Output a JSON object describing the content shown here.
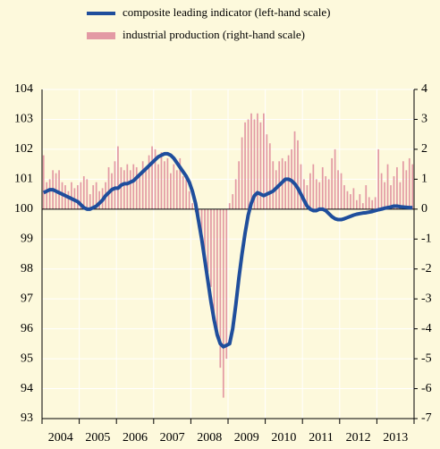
{
  "chart_data": {
    "type": "bar-line",
    "series": [
      {
        "name": "composite leading indicator (left-hand scale)",
        "type": "line",
        "color": "#1f4e9c",
        "axis": "y",
        "values": [
          100.55,
          100.6,
          100.65,
          100.65,
          100.6,
          100.55,
          100.5,
          100.45,
          100.4,
          100.35,
          100.3,
          100.25,
          100.15,
          100.05,
          100.0,
          100.0,
          100.05,
          100.1,
          100.2,
          100.3,
          100.45,
          100.55,
          100.65,
          100.7,
          100.7,
          100.8,
          100.85,
          100.85,
          100.9,
          100.95,
          101.05,
          101.15,
          101.25,
          101.35,
          101.45,
          101.55,
          101.65,
          101.75,
          101.8,
          101.85,
          101.85,
          101.8,
          101.7,
          101.55,
          101.4,
          101.25,
          101.1,
          100.9,
          100.6,
          100.2,
          99.6,
          99.0,
          98.3,
          97.6,
          96.9,
          96.3,
          95.8,
          95.5,
          95.4,
          95.45,
          95.5,
          96.0,
          96.8,
          97.7,
          98.5,
          99.2,
          99.8,
          100.2,
          100.45,
          100.55,
          100.5,
          100.45,
          100.5,
          100.55,
          100.6,
          100.7,
          100.8,
          100.9,
          101.0,
          101.0,
          100.95,
          100.85,
          100.7,
          100.5,
          100.3,
          100.1,
          100.0,
          99.95,
          99.95,
          100.0,
          100.0,
          99.95,
          99.85,
          99.75,
          99.68,
          99.65,
          99.65,
          99.68,
          99.72,
          99.76,
          99.8,
          99.83,
          99.85,
          99.87,
          99.88,
          99.9,
          99.92,
          99.95,
          99.98,
          100.0,
          100.03,
          100.05,
          100.07,
          100.1,
          100.1,
          100.08,
          100.07,
          100.06,
          100.05,
          100.05
        ]
      },
      {
        "name": "industrial production (right-hand scale)",
        "type": "bar",
        "color": "#e39aa4",
        "axis": "y2",
        "values": [
          1.8,
          0.9,
          1.0,
          1.3,
          1.2,
          1.3,
          0.9,
          0.8,
          0.6,
          0.9,
          0.7,
          0.8,
          0.9,
          1.1,
          1.0,
          0.5,
          0.8,
          0.9,
          0.6,
          0.7,
          0.9,
          1.4,
          1.2,
          1.6,
          2.1,
          1.4,
          1.3,
          1.5,
          1.3,
          1.5,
          1.4,
          1.1,
          1.6,
          1.3,
          1.8,
          2.1,
          2.0,
          1.5,
          1.9,
          1.6,
          1.7,
          1.2,
          1.5,
          1.3,
          1.7,
          1.1,
          1.0,
          0.6,
          0.2,
          -0.1,
          -0.5,
          -0.9,
          -1.5,
          -2.1,
          -2.6,
          -3.5,
          -4.1,
          -5.3,
          -6.3,
          -5.0,
          0.2,
          0.5,
          1.0,
          1.6,
          2.4,
          2.9,
          3.0,
          3.2,
          3.0,
          3.2,
          2.9,
          3.2,
          2.5,
          2.2,
          1.6,
          1.3,
          1.6,
          1.7,
          1.6,
          1.8,
          2.0,
          2.6,
          2.3,
          1.5,
          1.0,
          0.8,
          1.2,
          1.5,
          1.0,
          0.9,
          1.4,
          1.1,
          1.0,
          1.7,
          2.0,
          1.3,
          1.2,
          0.8,
          0.6,
          0.5,
          0.7,
          0.3,
          0.5,
          0.2,
          0.8,
          0.4,
          0.3,
          0.4,
          2.0,
          1.2,
          0.9,
          1.5,
          0.8,
          1.1,
          1.4,
          0.9,
          1.6,
          1.3,
          1.7,
          1.5
        ]
      }
    ],
    "categories": [
      null,
      null,
      null,
      null,
      null,
      null,
      "2004",
      null,
      null,
      null,
      null,
      null,
      null,
      null,
      null,
      null,
      null,
      null,
      "2005",
      null,
      null,
      null,
      null,
      null,
      null,
      null,
      null,
      null,
      null,
      null,
      "2006",
      null,
      null,
      null,
      null,
      null,
      null,
      null,
      null,
      null,
      null,
      null,
      "2007",
      null,
      null,
      null,
      null,
      null,
      null,
      null,
      null,
      null,
      null,
      null,
      "2008",
      null,
      null,
      null,
      null,
      null,
      null,
      null,
      null,
      null,
      null,
      null,
      "2009",
      null,
      null,
      null,
      null,
      null,
      null,
      null,
      null,
      null,
      null,
      null,
      "2010",
      null,
      null,
      null,
      null,
      null,
      null,
      null,
      null,
      null,
      null,
      null,
      "2011",
      null,
      null,
      null,
      null,
      null,
      null,
      null,
      null,
      null,
      null,
      null,
      "2012",
      null,
      null,
      null,
      null,
      null,
      null,
      null,
      null,
      null,
      null,
      null,
      "2013",
      null,
      null,
      null,
      null,
      null
    ],
    "ylim": [
      93,
      104
    ],
    "yticks": [
      93,
      94,
      95,
      96,
      97,
      98,
      99,
      100,
      101,
      102,
      103,
      104
    ],
    "y2lim": [
      -7,
      4
    ],
    "y2ticks": [
      -7,
      -6,
      -5,
      -4,
      -3,
      -2,
      -1,
      0,
      1,
      2,
      3,
      4
    ],
    "grid": true
  }
}
